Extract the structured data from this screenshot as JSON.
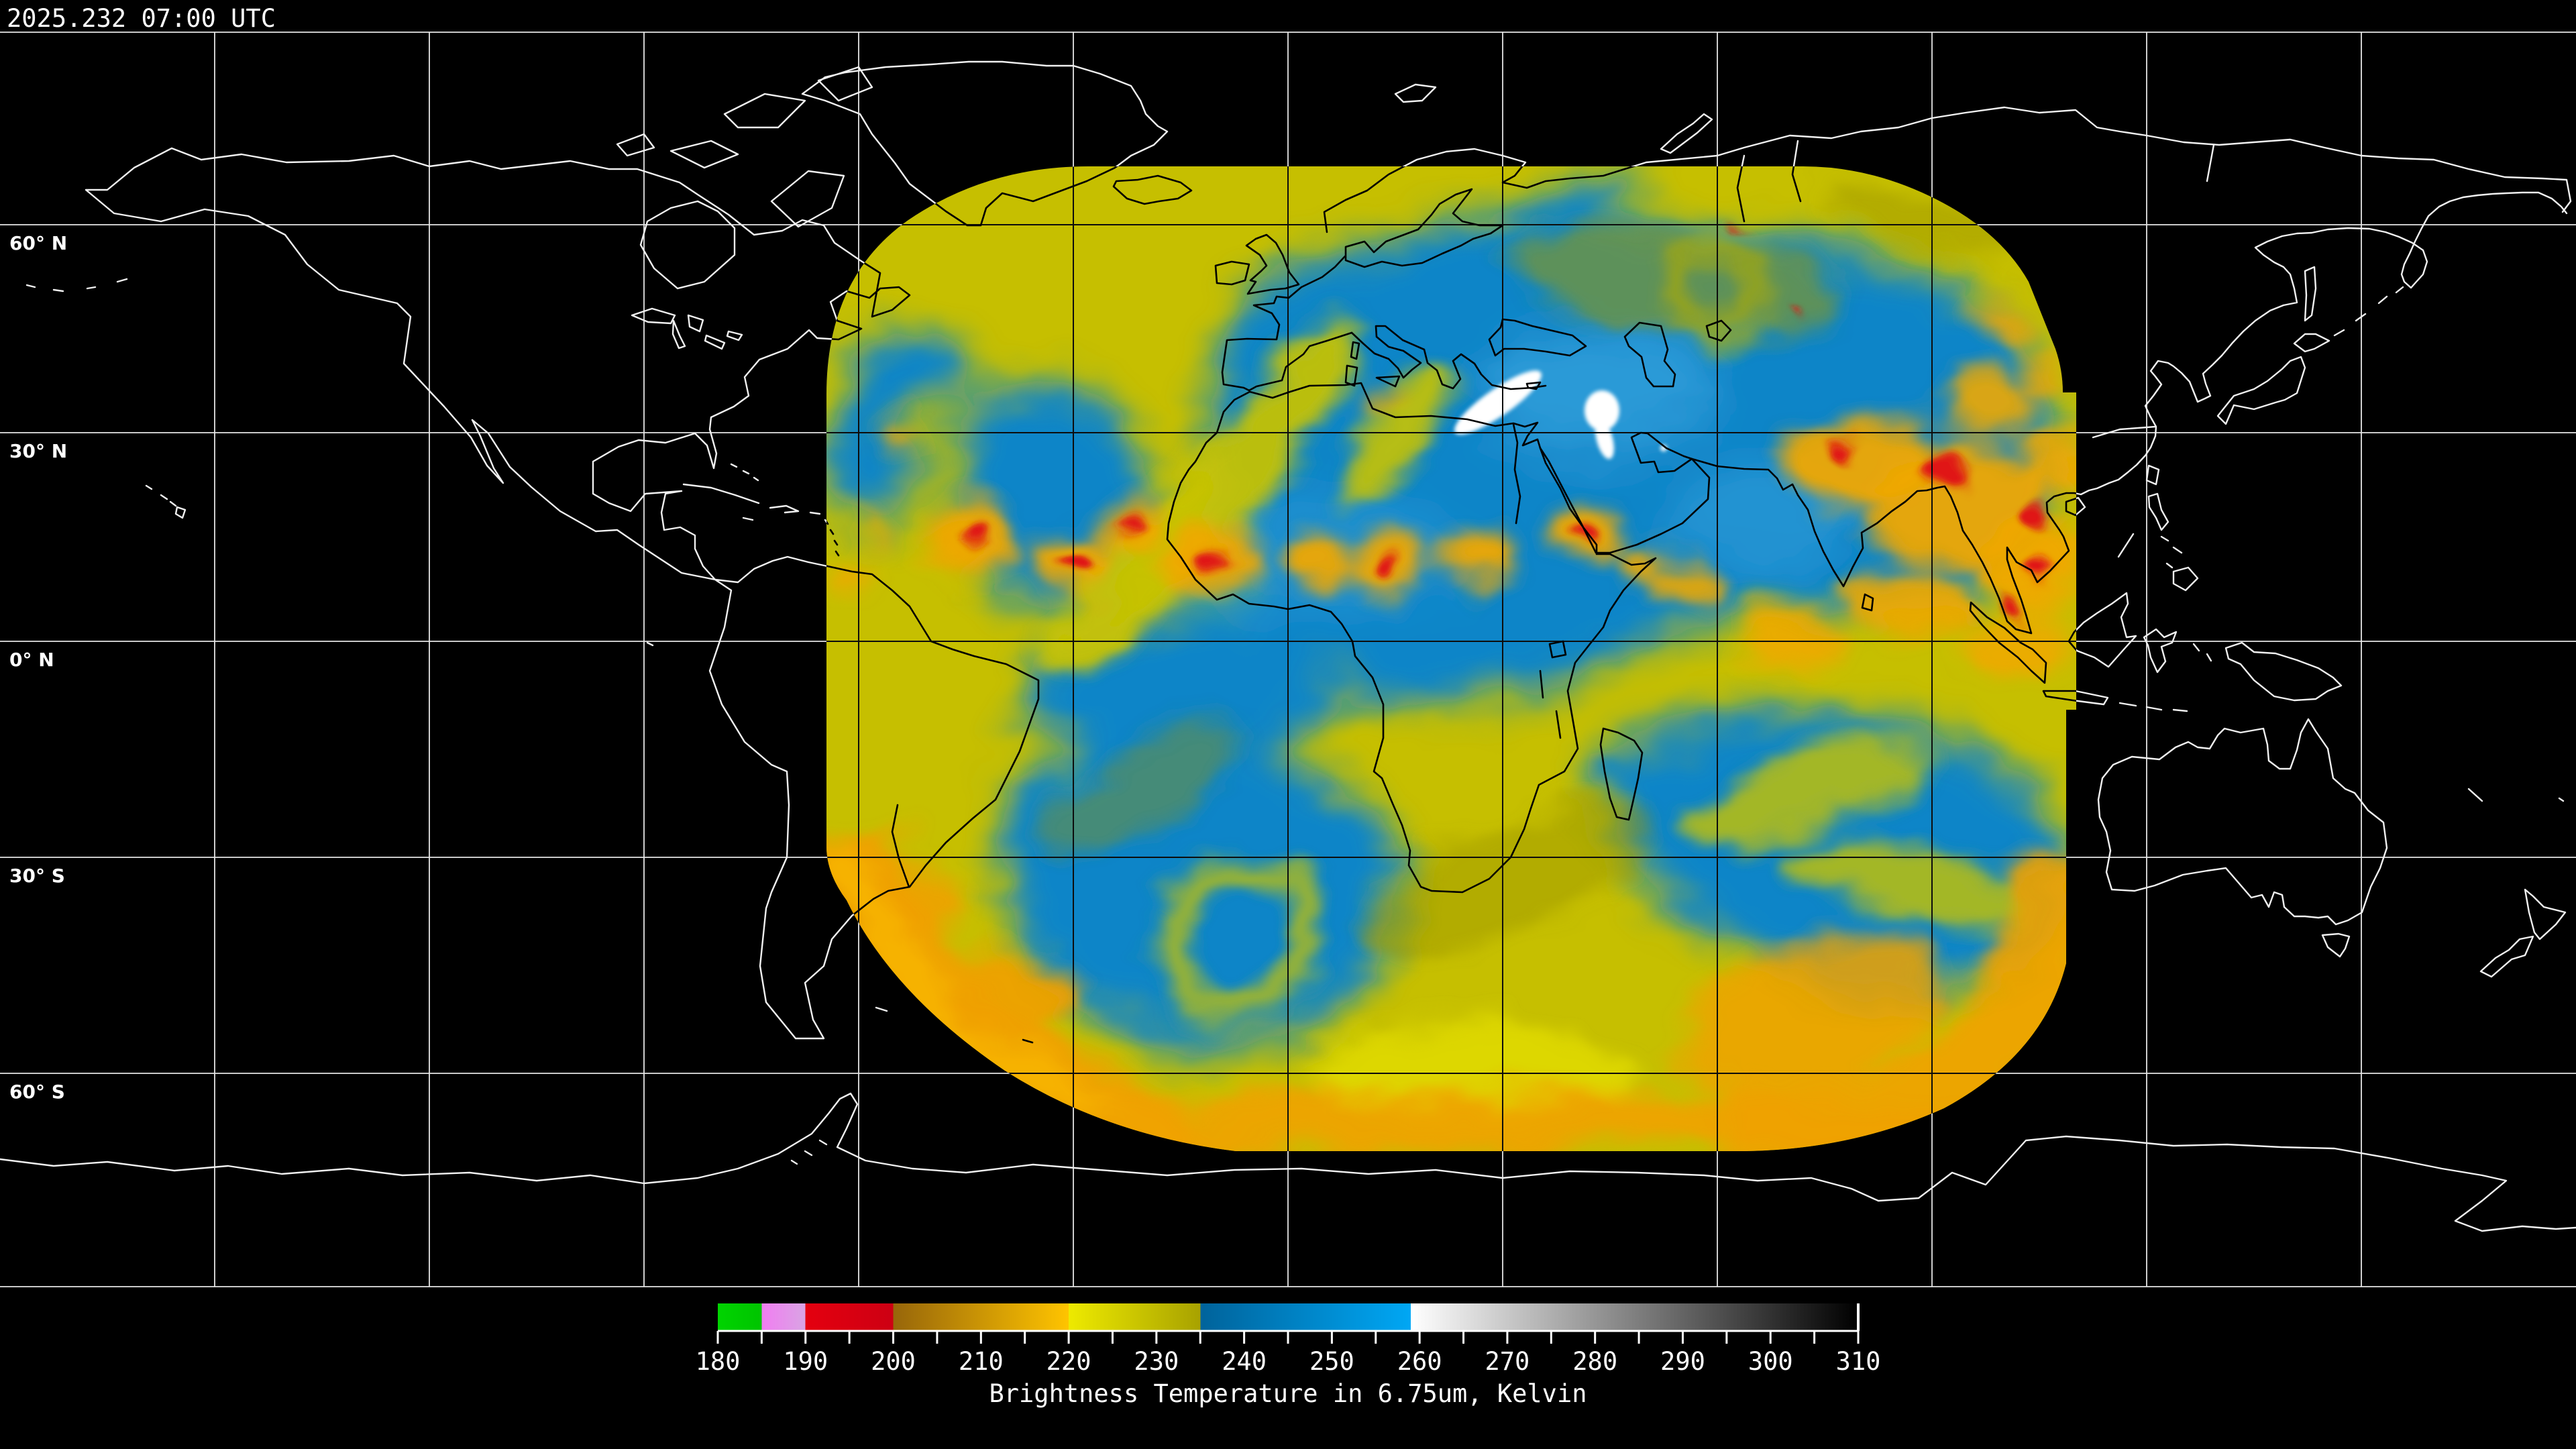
{
  "header": {
    "timestamp": "2025.232 07:00 UTC"
  },
  "map": {
    "projection": "equirectangular world map",
    "latitude_labels": [
      {
        "text": "60° N"
      },
      {
        "text": "30° N"
      },
      {
        "text": "0° N"
      },
      {
        "text": "30° S"
      },
      {
        "text": "60° S"
      }
    ],
    "colors": {
      "background": "#000000",
      "coastline_outside_swath": "#f0f0f0",
      "coastline_inside_swath": "#000000",
      "graticule_outside_swath": "#ffffff",
      "graticule_inside_swath": "#0d0d0d",
      "swath_yellow": "#c6bf00",
      "swath_blue": "#1085c8",
      "swath_orange": "#f0a400",
      "swath_red": "#e01414",
      "swath_white": "#ffffff"
    }
  },
  "colorbar": {
    "title": "Brightness Temperature in 6.75um, Kelvin",
    "unit": "Kelvin",
    "min": 180,
    "max": 310,
    "minor_step": 5,
    "major_step": 10,
    "tick_labels": [
      "180",
      "190",
      "200",
      "210",
      "220",
      "230",
      "240",
      "250",
      "260",
      "270",
      "280",
      "290",
      "300",
      "310"
    ],
    "segments": [
      {
        "name": "green",
        "from": 180,
        "to": 185,
        "color_start": "#00d400",
        "color_end": "#00c400"
      },
      {
        "name": "violet",
        "from": 185,
        "to": 190,
        "color_start": "#f17df1",
        "color_end": "#d9a4e4"
      },
      {
        "name": "red",
        "from": 190,
        "to": 200,
        "color_start": "#e4000f",
        "color_end": "#cd0013"
      },
      {
        "name": "orange",
        "from": 200,
        "to": 220,
        "color_start": "#97660a",
        "color_end": "#ffc400"
      },
      {
        "name": "yellow",
        "from": 220,
        "to": 235,
        "color_start": "#eeea00",
        "color_end": "#a8a200"
      },
      {
        "name": "blue",
        "from": 235,
        "to": 259,
        "color_start": "#00639b",
        "color_end": "#00a7f4"
      },
      {
        "name": "grayscale",
        "from": 259,
        "to": 310,
        "color_start": "#ffffff",
        "color_end": "#000000"
      }
    ]
  }
}
